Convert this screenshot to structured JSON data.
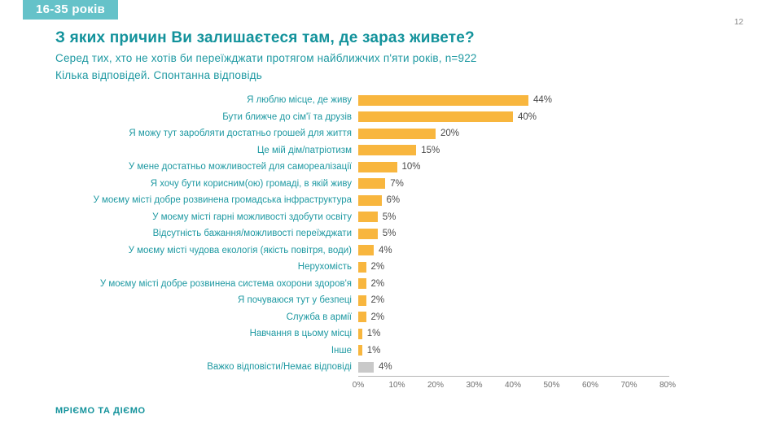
{
  "badge": {
    "label": "16-35 років"
  },
  "header": {
    "page_number": "12"
  },
  "title": "З яких причин Ви залишаєтеся там, де зараз живете?",
  "subtitle_line1": "Серед тих, хто не хотів би переїжджати протягом найближчих п'яти років, n=922",
  "subtitle_line2": "Кілька відповідей. Спонтанна відповідь",
  "footer": {
    "brand": "МРІЄМО ТА ДІЄМО"
  },
  "colors": {
    "teal": "#1e99a2",
    "title_teal": "#12929b",
    "badge_bg": "#65c2c9",
    "bar": "#f8b63e",
    "bar_muted": "#c9c9c9"
  },
  "chart_data": {
    "type": "bar",
    "orientation": "horizontal",
    "title": "З яких причин Ви залишаєтеся там, де зараз живете?",
    "categories": [
      "Я люблю місце, де живу",
      "Бути ближче до сім'ї та друзів",
      "Я можу тут заробляти достатньо грошей для життя",
      "Це мій дім/патріотизм",
      "У мене достатньо можливостей для самореалізації",
      "Я хочу бути корисним(ою) громаді, в якій живу",
      "У моєму місті добре розвинена громадська інфраструктура",
      "У моєму місті гарні можливості здобути освіту",
      "Відсутність бажання/можливості переїжджати",
      "У моєму місті чудова екологія (якість повітря, води)",
      "Нерухомість",
      "У моєму місті добре розвинена система охорони здоров'я",
      "Я почуваюся тут у безпеці",
      "Служба в армії",
      "Навчання в цьому місці",
      "Інше",
      "Важко відповісти/Немає відповіді"
    ],
    "values": [
      44,
      40,
      20,
      15,
      10,
      7,
      6,
      5,
      5,
      4,
      2,
      2,
      2,
      2,
      1,
      1,
      4
    ],
    "value_suffix": "%",
    "muted_indices": [
      16
    ],
    "xlim": [
      0,
      80
    ],
    "xticks": [
      "0%",
      "10%",
      "20%",
      "30%",
      "40%",
      "50%",
      "60%",
      "70%",
      "80%"
    ],
    "grid": false,
    "legend": false
  }
}
